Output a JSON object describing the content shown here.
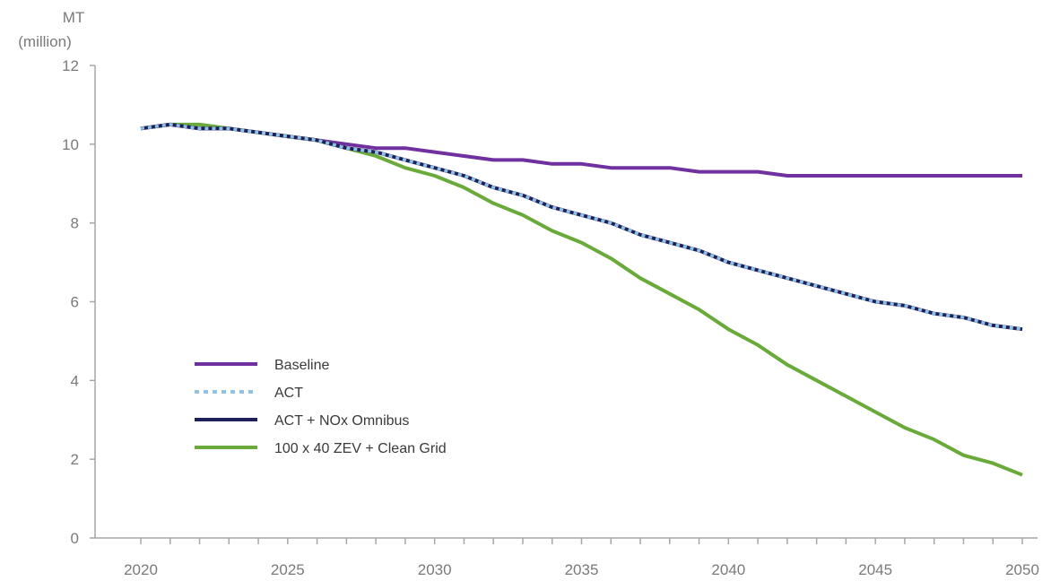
{
  "chart_data": {
    "type": "line",
    "ylabel": [
      "MT",
      "(million)"
    ],
    "xlabel": "",
    "x": [
      2020,
      2021,
      2022,
      2023,
      2024,
      2025,
      2026,
      2027,
      2028,
      2029,
      2030,
      2031,
      2032,
      2033,
      2034,
      2035,
      2036,
      2037,
      2038,
      2039,
      2040,
      2041,
      2042,
      2043,
      2044,
      2045,
      2046,
      2047,
      2048,
      2049,
      2050
    ],
    "xticks": [
      2020,
      2025,
      2030,
      2035,
      2040,
      2045,
      2050
    ],
    "xlim": [
      2020,
      2050
    ],
    "ylim": [
      0,
      12
    ],
    "yticks": [
      0,
      2,
      4,
      6,
      8,
      10,
      12
    ],
    "grid": false,
    "legend_position": "bottom-left",
    "series": [
      {
        "name": "Baseline",
        "color": "#7030a0",
        "style": "solid",
        "values": [
          10.4,
          10.5,
          10.4,
          10.4,
          10.3,
          10.2,
          10.1,
          10.0,
          9.9,
          9.9,
          9.8,
          9.7,
          9.6,
          9.6,
          9.5,
          9.5,
          9.4,
          9.4,
          9.4,
          9.3,
          9.3,
          9.3,
          9.2,
          9.2,
          9.2,
          9.2,
          9.2,
          9.2,
          9.2,
          9.2,
          9.2
        ]
      },
      {
        "name": "ACT",
        "color": "#8ec3e6",
        "style": "dotted",
        "values": [
          10.4,
          10.5,
          10.4,
          10.4,
          10.3,
          10.2,
          10.1,
          9.9,
          9.8,
          9.6,
          9.4,
          9.2,
          8.9,
          8.7,
          8.4,
          8.2,
          8.0,
          7.7,
          7.5,
          7.3,
          7.0,
          6.8,
          6.6,
          6.4,
          6.2,
          6.0,
          5.9,
          5.7,
          5.6,
          5.4,
          5.3
        ]
      },
      {
        "name": "ACT + NOx Omnibus",
        "color": "#1f1f5a",
        "style": "solid",
        "values": [
          10.4,
          10.5,
          10.4,
          10.4,
          10.3,
          10.2,
          10.1,
          9.9,
          9.8,
          9.6,
          9.4,
          9.2,
          8.9,
          8.7,
          8.4,
          8.2,
          8.0,
          7.7,
          7.5,
          7.3,
          7.0,
          6.8,
          6.6,
          6.4,
          6.2,
          6.0,
          5.9,
          5.7,
          5.6,
          5.4,
          5.3
        ]
      },
      {
        "name": "100 x 40 ZEV + Clean Grid",
        "color": "#6aaa3a",
        "style": "solid",
        "values": [
          10.4,
          10.5,
          10.5,
          10.4,
          10.3,
          10.2,
          10.1,
          9.9,
          9.7,
          9.4,
          9.2,
          8.9,
          8.5,
          8.2,
          7.8,
          7.5,
          7.1,
          6.6,
          6.2,
          5.8,
          5.3,
          4.9,
          4.4,
          4.0,
          3.6,
          3.2,
          2.8,
          2.5,
          2.1,
          1.9,
          1.6
        ]
      }
    ]
  }
}
